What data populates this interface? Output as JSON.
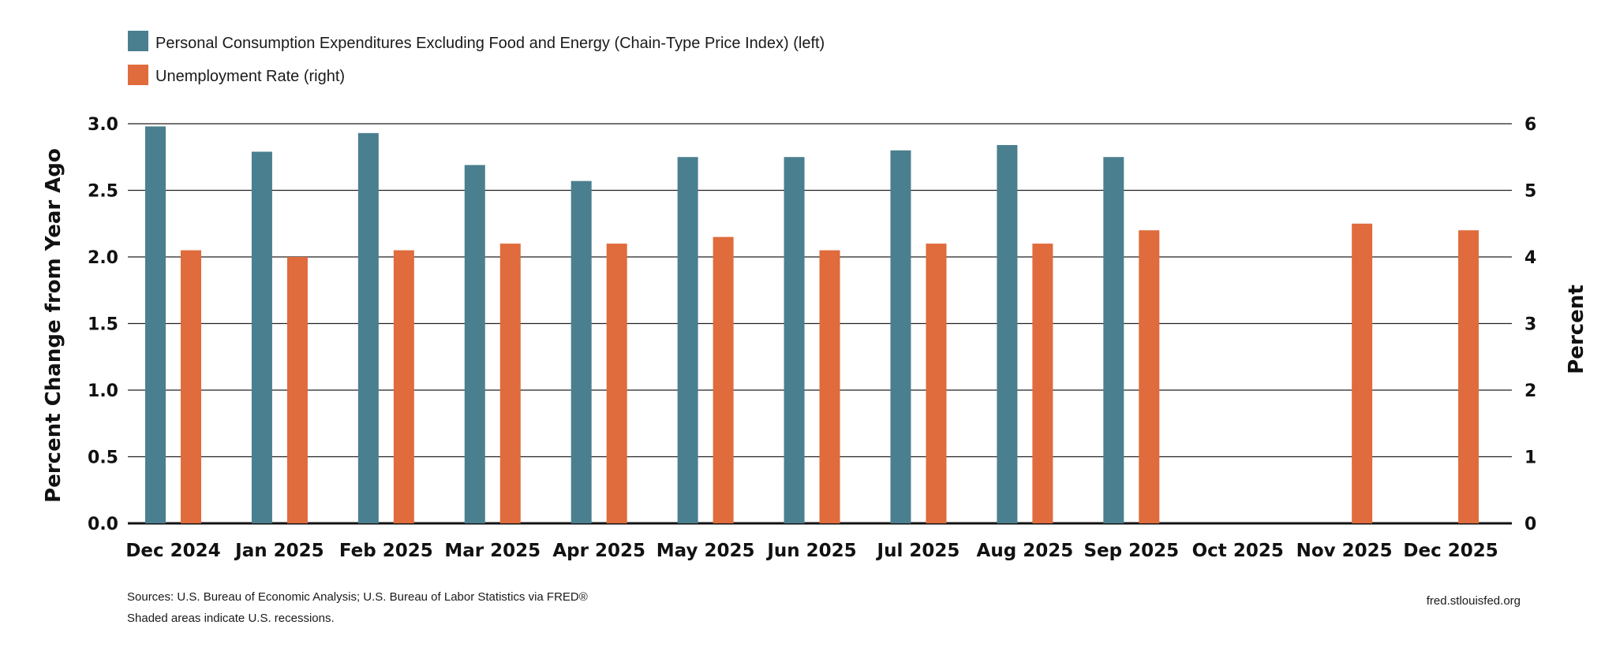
{
  "chart_data": {
    "type": "bar",
    "categories": [
      "Dec 2024",
      "Jan 2025",
      "Feb 2025",
      "Mar 2025",
      "Apr 2025",
      "May 2025",
      "Jun 2025",
      "Jul 2025",
      "Aug 2025",
      "Sep 2025",
      "Oct 2025",
      "Nov 2025",
      "Dec 2025"
    ],
    "series": [
      {
        "name": "Personal Consumption Expenditures Excluding Food and Energy (Chain-Type Price Index) (left)",
        "axis": "left",
        "color": "#4a7f8f",
        "values": [
          2.98,
          2.79,
          2.93,
          2.69,
          2.57,
          2.75,
          2.75,
          2.8,
          2.84,
          2.75,
          null,
          null,
          null
        ]
      },
      {
        "name": "Unemployment Rate (right)",
        "axis": "right",
        "color": "#e06b3c",
        "values": [
          4.1,
          4.0,
          4.1,
          4.2,
          4.2,
          4.3,
          4.1,
          4.2,
          4.2,
          4.4,
          null,
          4.5,
          4.4
        ]
      }
    ],
    "ylabel_left": "Percent Change from Year Ago",
    "ylabel_right": "Percent",
    "ylim_left": [
      0,
      3.0
    ],
    "yticks_left": [
      "0.0",
      "0.5",
      "1.0",
      "1.5",
      "2.0",
      "2.5",
      "3.0"
    ],
    "ylim_right": [
      0,
      6
    ],
    "yticks_right": [
      "0",
      "1",
      "2",
      "3",
      "4",
      "5",
      "6"
    ],
    "grid": true,
    "legend_position": "top-left"
  },
  "footer": {
    "source": "Sources: U.S. Bureau of Economic Analysis; U.S. Bureau of Labor Statistics via FRED®",
    "recession_note": "Shaded areas indicate U.S. recessions.",
    "site": "fred.stlouisfed.org"
  }
}
